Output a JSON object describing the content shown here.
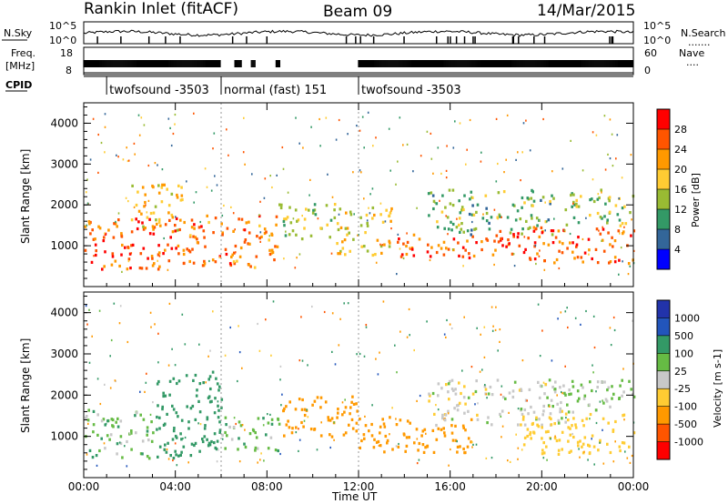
{
  "header": {
    "station": "Rankin Inlet (fitACF)",
    "beam": "Beam 09",
    "date": "14/Mar/2015"
  },
  "strip_labels": {
    "nsky": "N.Sky",
    "freq_line1": "Freq.",
    "freq_line2": "[MHz]",
    "cpid": "CPID",
    "nsearch": "N.Search",
    "nsearch_dots": ".......",
    "nave": "Nave",
    "nave_dots": "...."
  },
  "strip_ticks": {
    "nsky_left": [
      "10^5",
      "10^0"
    ],
    "nsky_right": [
      "10^5",
      "10^0"
    ],
    "freq_left": [
      "18",
      "8"
    ],
    "freq_right": [
      "60",
      "0"
    ]
  },
  "cpid_segments": [
    {
      "label": "twofsound -3503",
      "start_hour": 1.0,
      "end_hour": 6.0
    },
    {
      "label": "normal (fast) 151",
      "start_hour": 6.0,
      "end_hour": 12.0
    },
    {
      "label": "twofsound -3503",
      "start_hour": 12.0,
      "end_hour": 24.0
    }
  ],
  "chart_data": [
    {
      "type": "heatmap",
      "title": "",
      "xlabel": "Time UT",
      "ylabel": "Slant Range [km]",
      "xlim": [
        0,
        24
      ],
      "ylim": [
        0,
        4500
      ],
      "x_ticks": [
        "00:00",
        "04:00",
        "08:00",
        "12:00",
        "16:00",
        "20:00",
        "00:00"
      ],
      "y_ticks": [
        "1000",
        "2000",
        "3000",
        "4000"
      ],
      "colorbar": {
        "label": "Power [dB]",
        "ticks": [
          "28",
          "24",
          "20",
          "16",
          "12",
          "8",
          "4"
        ],
        "colors": [
          "#ff0000",
          "#ff5500",
          "#ff9900",
          "#ffcc33",
          "#99bb33",
          "#339966",
          "#336699",
          "#0000ff"
        ]
      },
      "echo_regions": [
        {
          "t0": 0.0,
          "t1": 4.5,
          "r0": 450,
          "r1": 1700,
          "level": 26
        },
        {
          "t0": 2.0,
          "t1": 4.3,
          "r0": 1400,
          "r1": 2600,
          "level": 20
        },
        {
          "t0": 4.5,
          "t1": 8.5,
          "r0": 500,
          "r1": 1800,
          "level": 24
        },
        {
          "t0": 8.5,
          "t1": 11.0,
          "r0": 1200,
          "r1": 2100,
          "level": 14
        },
        {
          "t0": 11.0,
          "t1": 13.5,
          "r0": 800,
          "r1": 2000,
          "level": 18
        },
        {
          "t0": 13.5,
          "t1": 18.0,
          "r0": 700,
          "r1": 1300,
          "level": 25
        },
        {
          "t0": 15.0,
          "t1": 20.5,
          "r0": 1300,
          "r1": 2400,
          "level": 12
        },
        {
          "t0": 18.0,
          "t1": 24.0,
          "r0": 600,
          "r1": 1500,
          "level": 26
        },
        {
          "t0": 21.0,
          "t1": 24.0,
          "r0": 1500,
          "r1": 2400,
          "level": 14
        }
      ]
    },
    {
      "type": "heatmap",
      "title": "",
      "xlabel": "Time UT",
      "ylabel": "Slant Range [km]",
      "xlim": [
        0,
        24
      ],
      "ylim": [
        0,
        4500
      ],
      "x_ticks": [
        "00:00",
        "04:00",
        "08:00",
        "12:00",
        "16:00",
        "20:00",
        "00:00"
      ],
      "y_ticks": [
        "1000",
        "2000",
        "3000",
        "4000"
      ],
      "colorbar": {
        "label": "Velocity [m s-1]",
        "ticks": [
          "1000",
          "500",
          "100",
          "25",
          "-25",
          "-100",
          "-500",
          "-1000"
        ],
        "colors": [
          "#2233aa",
          "#2255bb",
          "#339966",
          "#66bb44",
          "#c8c8c8",
          "#ffcc33",
          "#ff9900",
          "#ff5500",
          "#ff0000"
        ]
      },
      "echo_regions": [
        {
          "t0": 0.0,
          "t1": 3.0,
          "r0": 500,
          "r1": 1700,
          "level": 60
        },
        {
          "t0": 3.0,
          "t1": 6.0,
          "r0": 500,
          "r1": 2600,
          "level": 300
        },
        {
          "t0": 6.0,
          "t1": 8.5,
          "r0": 600,
          "r1": 1500,
          "level": 60
        },
        {
          "t0": 8.5,
          "t1": 12.0,
          "r0": 1000,
          "r1": 2000,
          "level": -200
        },
        {
          "t0": 12.0,
          "t1": 17.0,
          "r0": 600,
          "r1": 1500,
          "level": -150
        },
        {
          "t0": 15.0,
          "t1": 21.0,
          "r0": 1300,
          "r1": 2400,
          "level": 0
        },
        {
          "t0": 19.0,
          "t1": 24.0,
          "r0": 600,
          "r1": 1600,
          "level": -60
        },
        {
          "t0": 20.0,
          "t1": 24.0,
          "r0": 1600,
          "r1": 2400,
          "level": 40
        }
      ]
    }
  ]
}
